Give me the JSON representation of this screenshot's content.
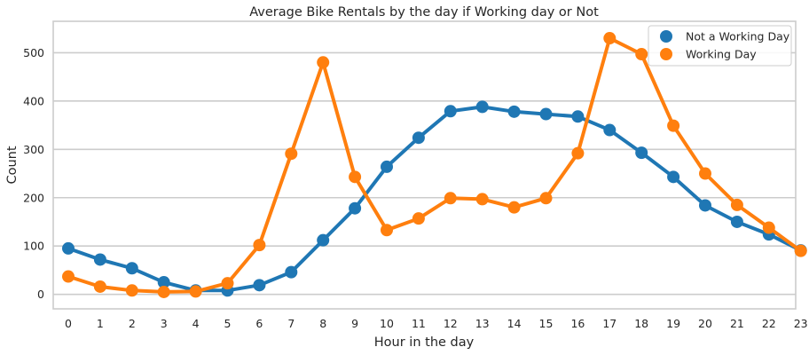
{
  "chart_data": {
    "type": "line",
    "title": "Average Bike Rentals by the day if Working day or Not",
    "xlabel": "Hour in the day",
    "ylabel": "Count",
    "categories": [
      "0",
      "1",
      "2",
      "3",
      "4",
      "5",
      "6",
      "7",
      "8",
      "9",
      "10",
      "11",
      "12",
      "13",
      "14",
      "15",
      "16",
      "17",
      "18",
      "19",
      "20",
      "21",
      "22",
      "23"
    ],
    "yticks": [
      0,
      100,
      200,
      300,
      400,
      500
    ],
    "ylim": [
      -30,
      565
    ],
    "grid": "horizontal",
    "legend_position": "top-right",
    "series": [
      {
        "name": "Not a Working Day",
        "color": "#1f77b4",
        "values": [
          95,
          72,
          54,
          25,
          8,
          8,
          19,
          46,
          112,
          178,
          264,
          324,
          379,
          388,
          378,
          373,
          368,
          340,
          293,
          243,
          184,
          150,
          124,
          91
        ]
      },
      {
        "name": "Working Day",
        "color": "#ff7f0e",
        "values": [
          37,
          16,
          8,
          5,
          6,
          23,
          102,
          291,
          480,
          243,
          133,
          157,
          199,
          197,
          180,
          199,
          292,
          530,
          497,
          349,
          250,
          185,
          138,
          90
        ]
      }
    ]
  }
}
